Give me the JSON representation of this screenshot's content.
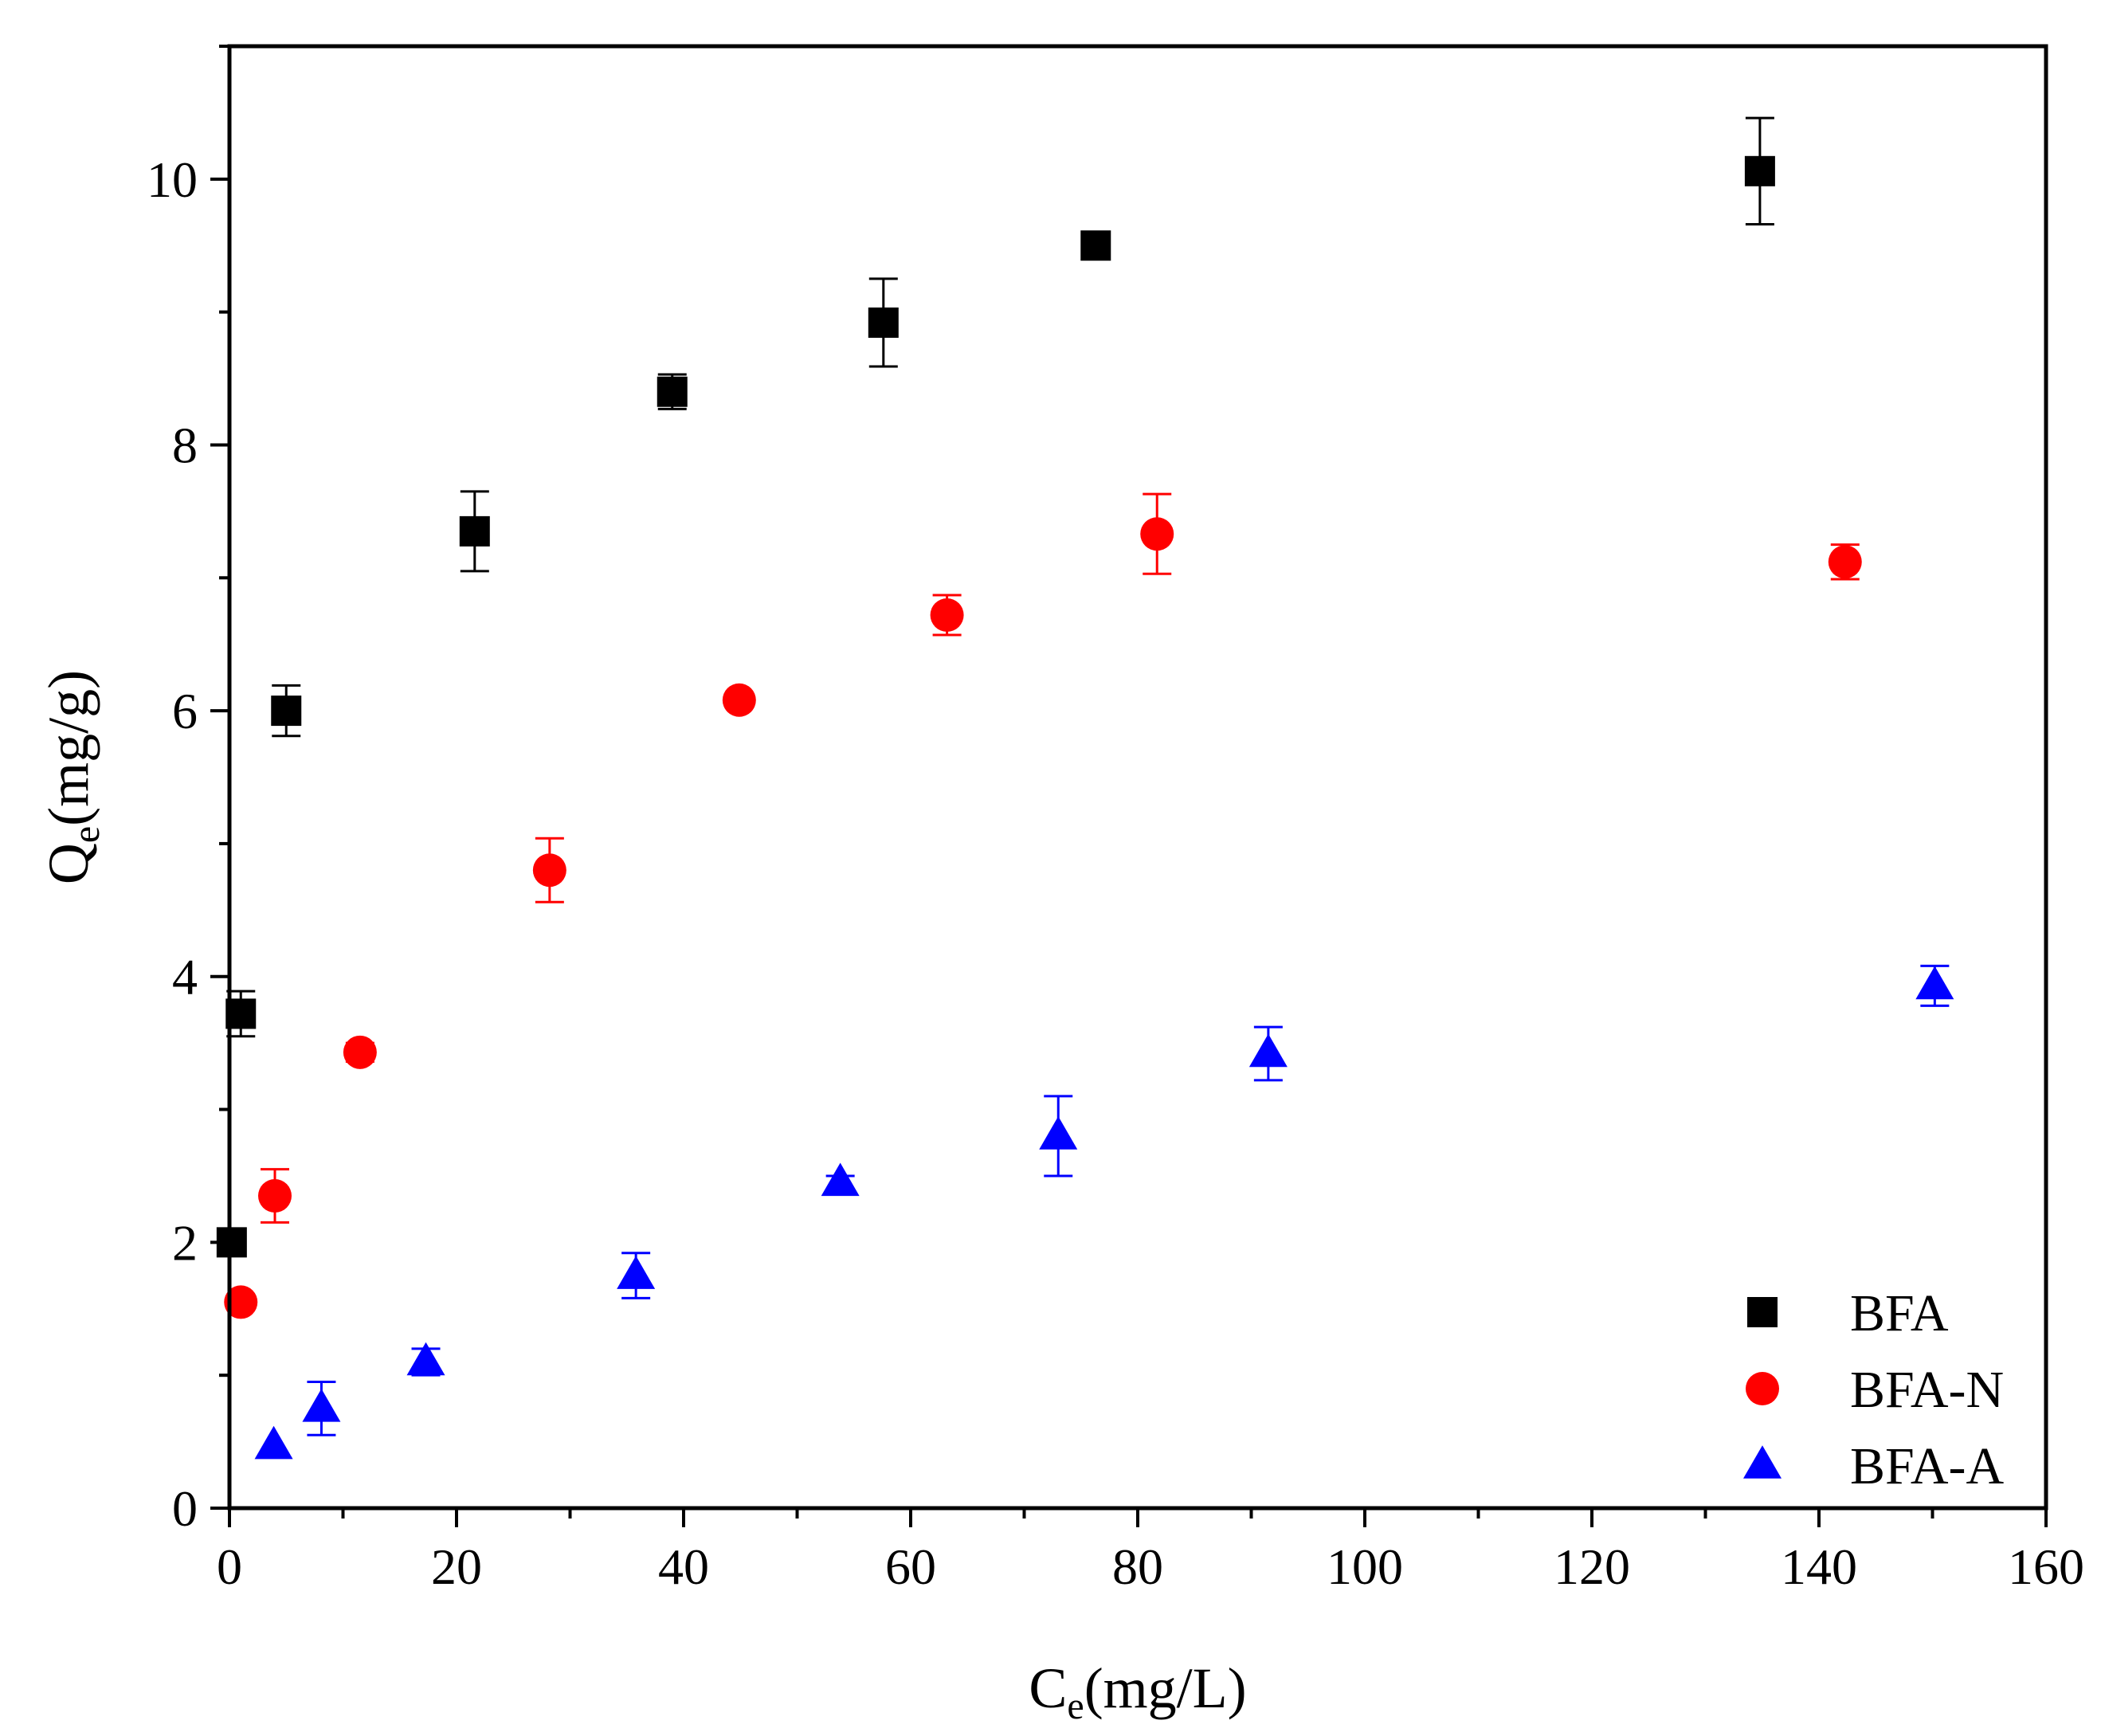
{
  "chart_data": {
    "type": "scatter",
    "xlabel": {
      "main": "C",
      "sub": "e",
      "unit": "(mg/L)"
    },
    "ylabel": {
      "main": "Q",
      "sub": "e",
      "unit": "(mg/g)"
    },
    "xlim": [
      0,
      160
    ],
    "ylim": [
      0,
      11
    ],
    "xticks": [
      0,
      20,
      40,
      60,
      80,
      100,
      120,
      140,
      160
    ],
    "yticks": [
      0,
      2,
      4,
      6,
      8,
      10
    ],
    "grid": false,
    "legend_position": "bottom-right",
    "series": [
      {
        "name": "BFA",
        "marker": "square",
        "color": "#000000",
        "points": [
          {
            "x": 0.2,
            "y": 2.0,
            "err": 0
          },
          {
            "x": 1.0,
            "y": 3.72,
            "err": 0.17
          },
          {
            "x": 5.0,
            "y": 6.0,
            "err": 0.19
          },
          {
            "x": 21.6,
            "y": 7.35,
            "err": 0.3
          },
          {
            "x": 39.0,
            "y": 8.4,
            "err": 0.13
          },
          {
            "x": 57.6,
            "y": 8.92,
            "err": 0.33
          },
          {
            "x": 76.3,
            "y": 9.5,
            "err": 0
          },
          {
            "x": 134.8,
            "y": 10.06,
            "err": 0.4
          }
        ]
      },
      {
        "name": "BFA-N",
        "marker": "circle",
        "color": "#ff0000",
        "points": [
          {
            "x": 1.0,
            "y": 1.55,
            "err": 0
          },
          {
            "x": 4.0,
            "y": 2.35,
            "err": 0.2
          },
          {
            "x": 11.5,
            "y": 3.43,
            "err": 0.07
          },
          {
            "x": 28.2,
            "y": 4.8,
            "err": 0.24
          },
          {
            "x": 44.9,
            "y": 6.08,
            "err": 0
          },
          {
            "x": 63.2,
            "y": 6.72,
            "err": 0.15
          },
          {
            "x": 81.7,
            "y": 7.33,
            "err": 0.3
          },
          {
            "x": 142.3,
            "y": 7.12,
            "err": 0.13
          }
        ]
      },
      {
        "name": "BFA-A",
        "marker": "triangle",
        "color": "#0000ff",
        "points": [
          {
            "x": 3.9,
            "y": 0.47,
            "err": 0
          },
          {
            "x": 8.1,
            "y": 0.75,
            "err": 0.2
          },
          {
            "x": 17.3,
            "y": 1.1,
            "err": 0.1
          },
          {
            "x": 35.8,
            "y": 1.75,
            "err": 0.17
          },
          {
            "x": 53.8,
            "y": 2.45,
            "err": 0.05
          },
          {
            "x": 73.0,
            "y": 2.8,
            "err": 0.3
          },
          {
            "x": 91.5,
            "y": 3.42,
            "err": 0.2
          },
          {
            "x": 150.2,
            "y": 3.93,
            "err": 0.15
          }
        ]
      }
    ]
  }
}
